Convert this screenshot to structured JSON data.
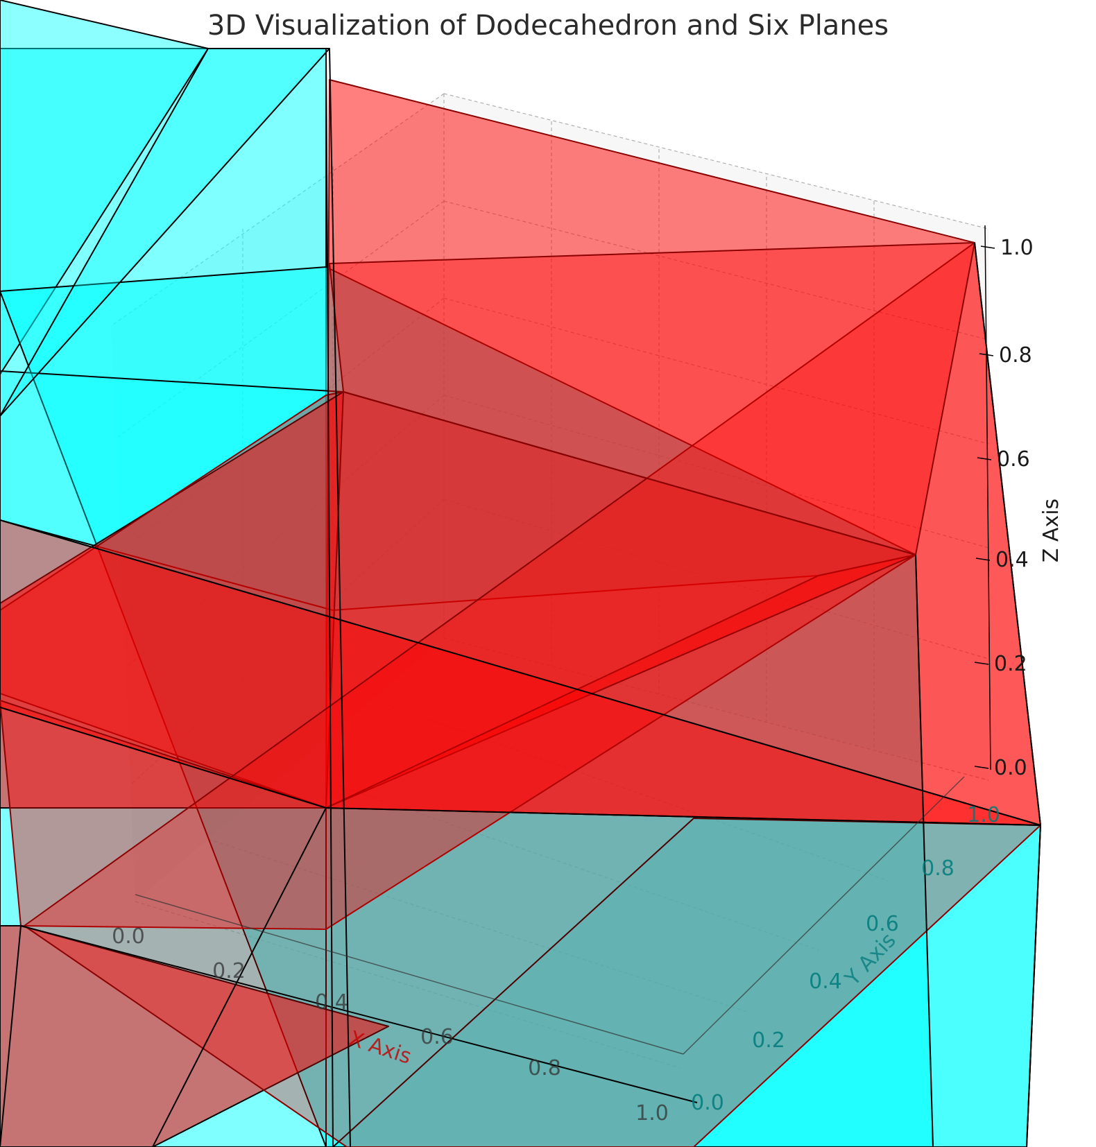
{
  "chart_data": {
    "type": "3d-surface",
    "title": "3D Visualization of Dodecahedron and Six Planes",
    "xlabel": "X Axis",
    "ylabel": "Y Axis",
    "zlabel": "Z Axis",
    "xlim": [
      0,
      1
    ],
    "ylim": [
      0,
      1
    ],
    "zlim": [
      0,
      1
    ],
    "x_ticks": [
      "0.0",
      "0.2",
      "0.4",
      "0.6",
      "0.8",
      "1.0"
    ],
    "y_ticks": [
      "0.0",
      "0.2",
      "0.4",
      "0.6",
      "0.8",
      "1.0"
    ],
    "z_ticks": [
      "0.0",
      "0.2",
      "0.4",
      "0.6",
      "0.8",
      "1.0"
    ],
    "grid": true,
    "series": [
      {
        "name": "",
        "color": "#ff0000",
        "alpha": 0.5,
        "edge": "#8b0000"
      },
      {
        "name": "",
        "color": "#00ffff",
        "alpha": 0.5,
        "edge": "#000000"
      }
    ]
  },
  "colors": {
    "plane_red": "#ff0000",
    "plane_cyan": "#00ffff",
    "edge": "#000000",
    "edge_red": "#8b0000",
    "grid": "#b0b0b0",
    "pane": "#f2f2f2"
  }
}
